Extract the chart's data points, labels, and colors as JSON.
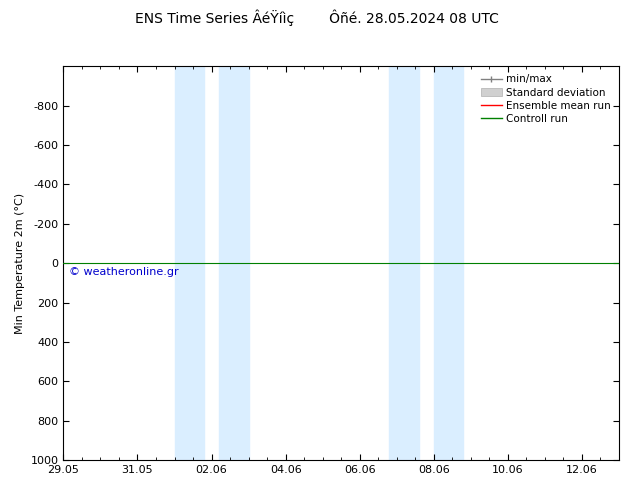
{
  "title": "ENS Time Series ÂéŸíìç        Ôñé. 28.05.2024 08 UTC",
  "ylabel": "Min Temperature 2m (°C)",
  "ylim_top": -1000,
  "ylim_bottom": 1000,
  "yticks": [
    -800,
    -600,
    -400,
    -200,
    0,
    200,
    400,
    600,
    800,
    1000
  ],
  "xtick_labels": [
    "29.05",
    "31.05",
    "02.06",
    "04.06",
    "06.06",
    "08.06",
    "10.06",
    "12.06"
  ],
  "xlim_left": 0,
  "xlim_right": 15,
  "green_line_y": 0,
  "blue_bands": [
    [
      3.0,
      3.8
    ],
    [
      4.2,
      5.0
    ],
    [
      8.8,
      9.6
    ],
    [
      10.0,
      10.8
    ]
  ],
  "blue_band_color": "#daeeff",
  "copyright_text": "© weatheronline.gr",
  "copyright_color": "#0000cc",
  "legend_items": [
    "min/max",
    "Standard deviation",
    "Ensemble mean run",
    "Controll run"
  ],
  "legend_line_colors": [
    "#808080",
    "#c0c0c0",
    "#ff0000",
    "#008000"
  ],
  "background_color": "#ffffff",
  "title_fontsize": 10,
  "axis_label_fontsize": 8,
  "tick_fontsize": 8,
  "legend_fontsize": 7.5
}
